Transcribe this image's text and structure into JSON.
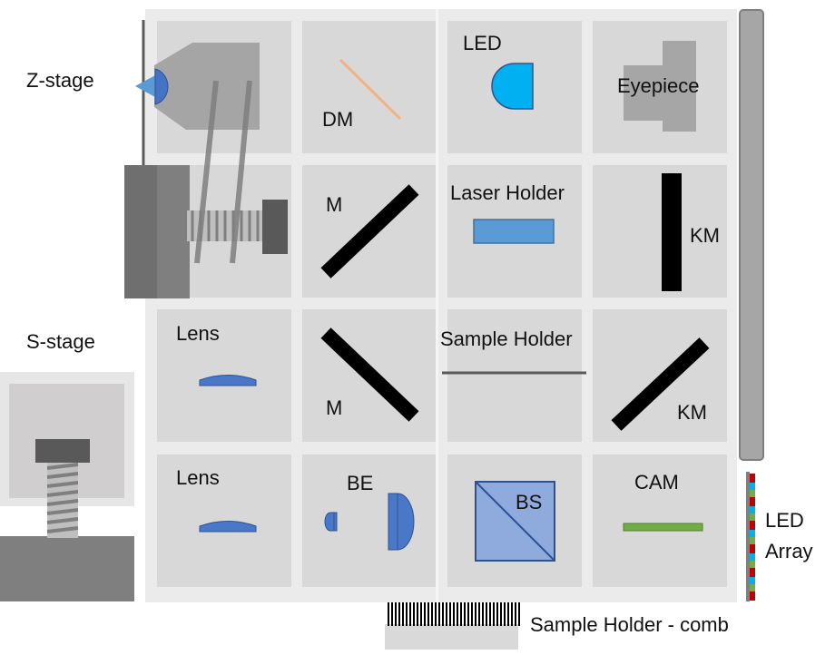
{
  "labels": {
    "z_stage": "Z-stage",
    "s_stage": "S-stage",
    "dm": "DM",
    "led": "LED",
    "eyepiece": "Eyepiece",
    "m_row2": "M",
    "laser_holder": "Laser Holder",
    "km_row2": "KM",
    "lens_row3": "Lens",
    "m_row3": "M",
    "sample_holder": "Sample Holder",
    "km_row3": "KM",
    "lens_row4": "Lens",
    "be": "BE",
    "bs": "BS",
    "cam": "CAM",
    "led_array_line1": "LED",
    "led_array_line2": "Array",
    "sample_holder_comb": "Sample Holder - comb"
  },
  "colors": {
    "board": "#ebebeb",
    "cell": "#d9d8d8",
    "lens_blue": "#4a78c8",
    "led_cyan": "#00b0f0",
    "laser_blue": "#5b9bd5",
    "dm_line": "#f4b183",
    "cam_green": "#70ad47",
    "mirror": "#000000"
  }
}
